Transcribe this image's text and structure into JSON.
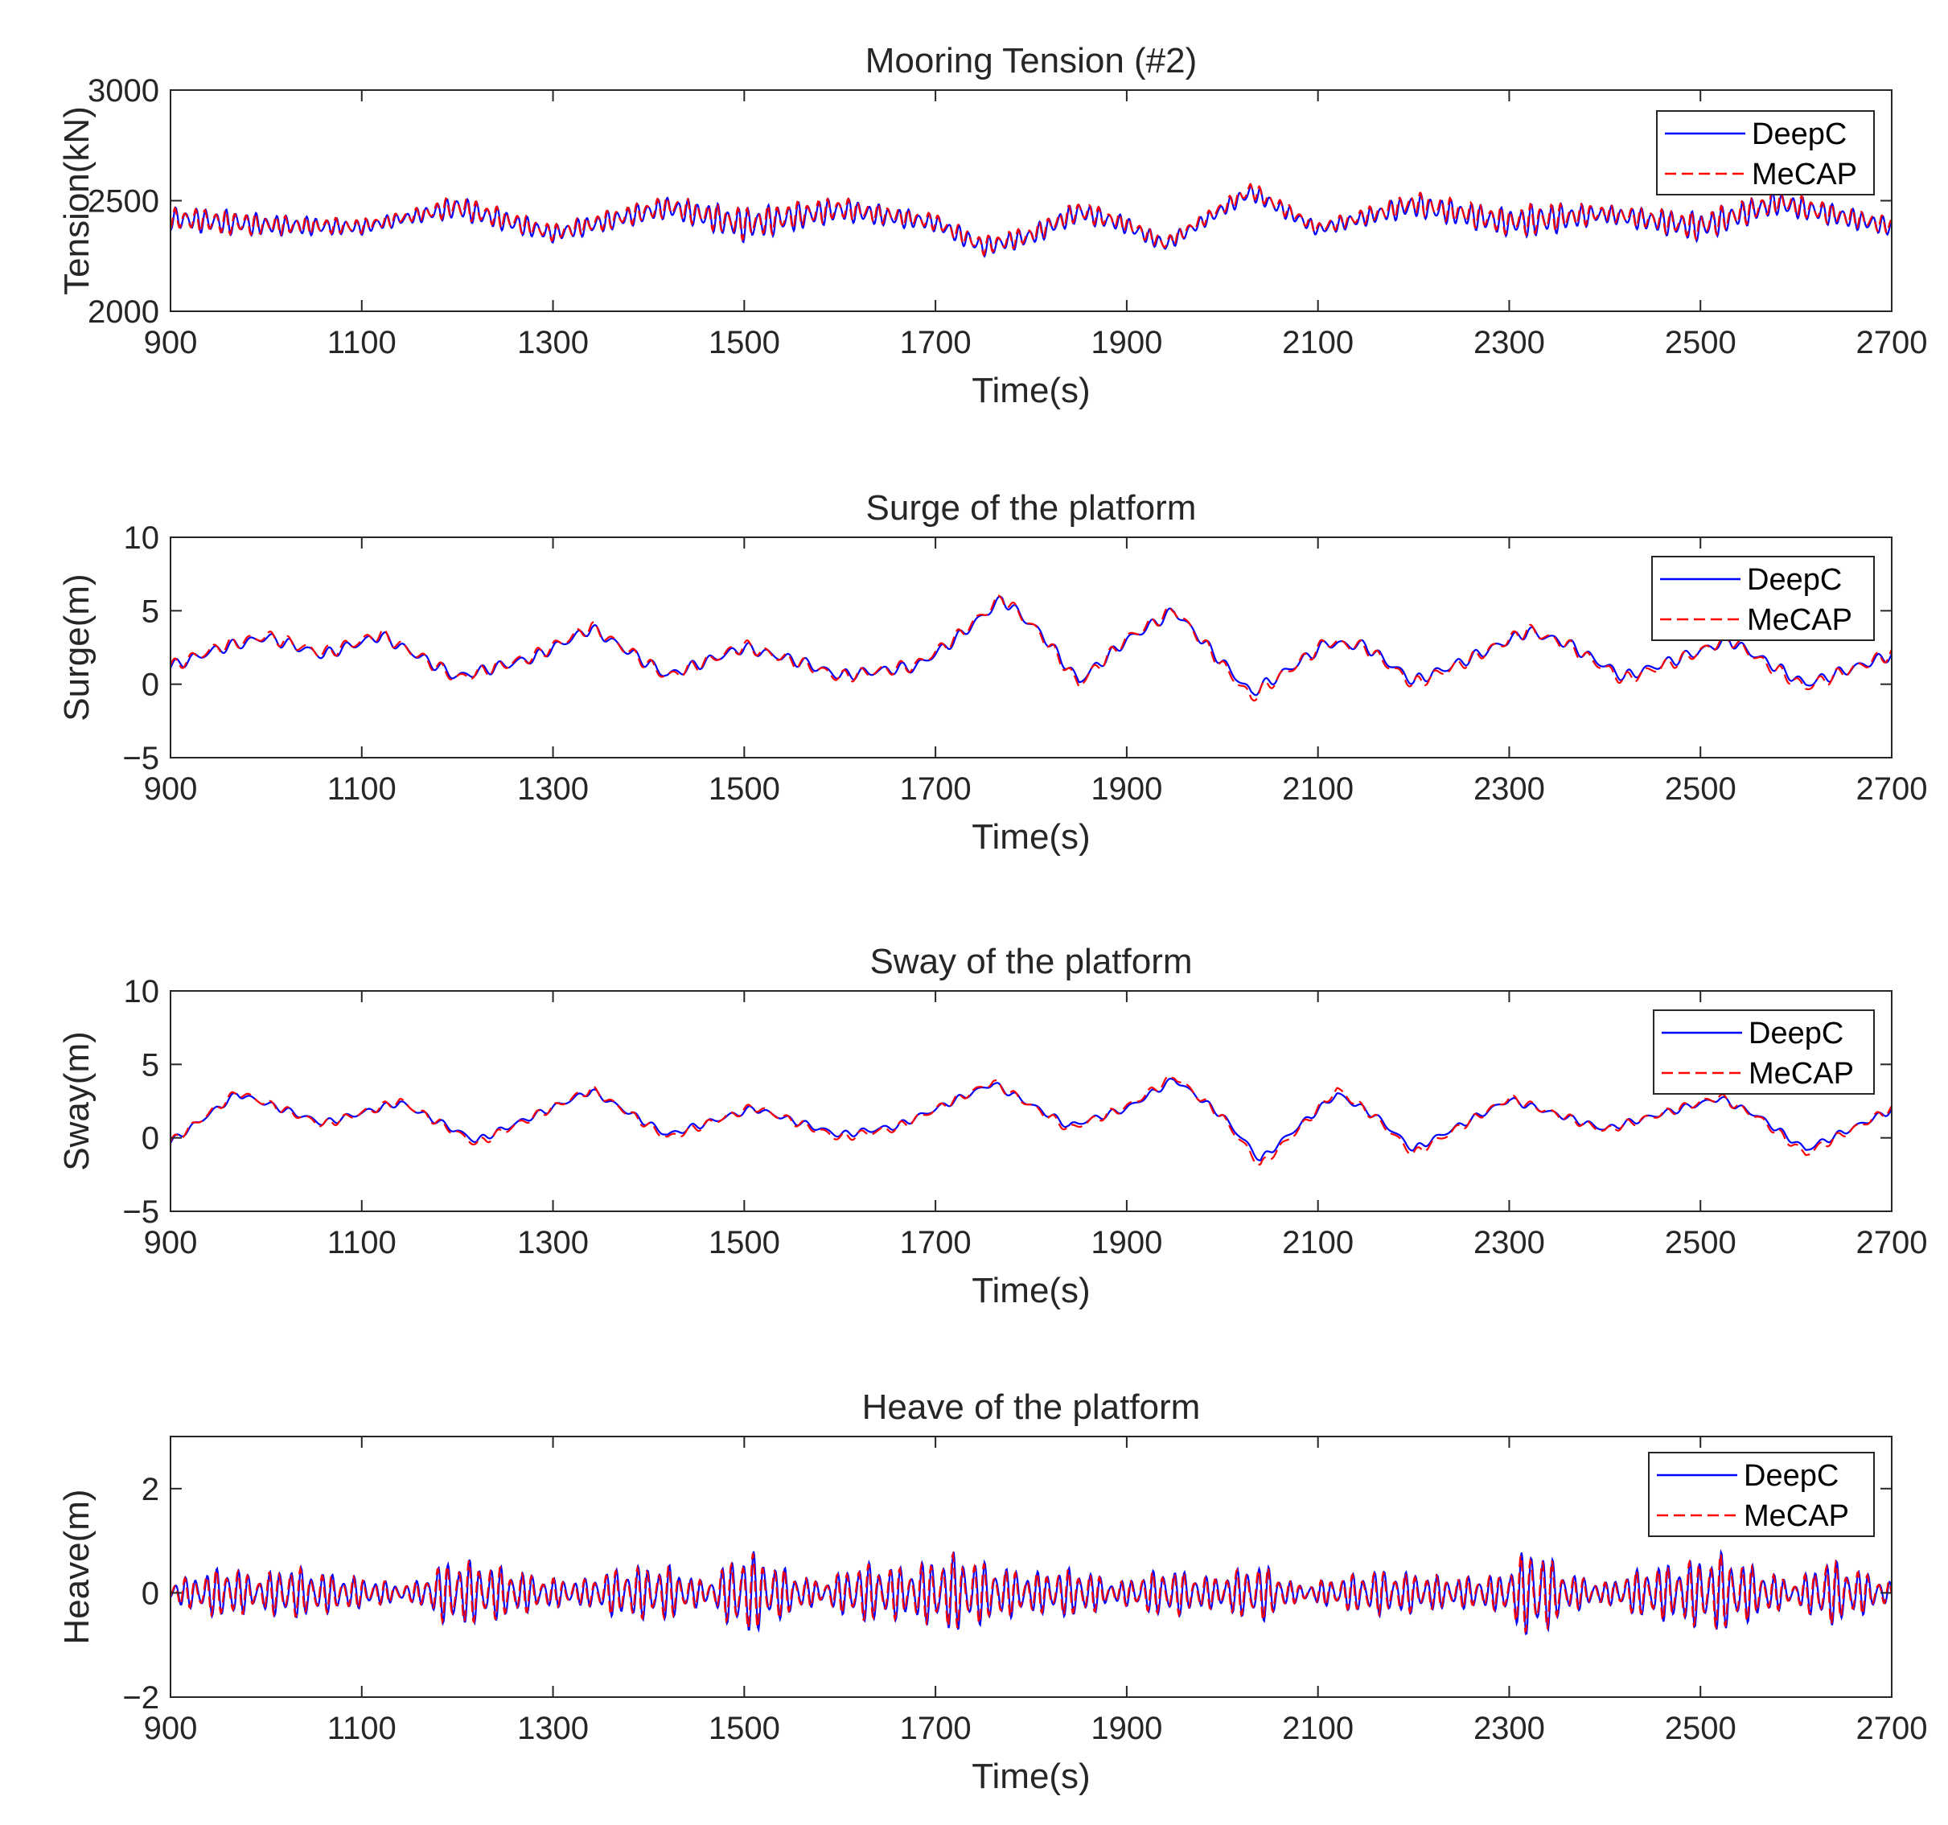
{
  "colors": {
    "deepc": "#0000ff",
    "mecap": "#ff0000",
    "axis": "#262626"
  },
  "chart_data": [
    {
      "type": "line",
      "title": "Mooring Tension (#2)",
      "xlabel": "Time(s)",
      "ylabel": "Tension(kN)",
      "xlim": [
        900,
        2700
      ],
      "ylim": [
        2000,
        3000
      ],
      "xticks": [
        "900",
        "1100",
        "1300",
        "1500",
        "1700",
        "1900",
        "2100",
        "2300",
        "2500",
        "2700"
      ],
      "yticks": [
        "2000",
        "2500",
        "3000"
      ],
      "legend": [
        "DeepC",
        "MeCAP"
      ],
      "legend_location": "top-right",
      "series": [
        {
          "name": "DeepC",
          "style": "solid",
          "base": {
            "x": [
              900,
              1000,
              1100,
              1200,
              1300,
              1350,
              1420,
              1500,
              1600,
              1700,
              1750,
              1800,
              1850,
              1900,
              1940,
              2030,
              2100,
              2200,
              2300,
              2400,
              2500,
              2580,
              2700
            ],
            "y": [
              2420,
              2390,
              2380,
              2470,
              2350,
              2400,
              2470,
              2390,
              2460,
              2400,
              2290,
              2340,
              2450,
              2390,
              2300,
              2540,
              2370,
              2480,
              2400,
              2440,
              2380,
              2490,
              2380
            ]
          },
          "envelope": {
            "x": [
              900,
              950,
              1000,
              1100,
              1150,
              1200,
              1250,
              1300,
              1340,
              1420,
              1500,
              1600,
              1700,
              1750,
              1800,
              1850,
              1900,
              1940,
              1980,
              2030,
              2100,
              2150,
              2200,
              2300,
              2330,
              2400,
              2500,
              2580,
              2650,
              2700
            ],
            "y": [
              50,
              60,
              50,
              35,
              30,
              55,
              50,
              40,
              45,
              50,
              80,
              55,
              40,
              45,
              45,
              50,
              40,
              35,
              30,
              40,
              30,
              40,
              55,
              65,
              80,
              40,
              70,
              55,
              50,
              40
            ]
          },
          "period_s": 10.5
        },
        {
          "name": "MeCAP",
          "style": "dashed",
          "base": {
            "x": [
              900,
              1000,
              1100,
              1200,
              1300,
              1350,
              1420,
              1500,
              1600,
              1700,
              1750,
              1800,
              1850,
              1900,
              1940,
              2030,
              2100,
              2200,
              2300,
              2400,
              2500,
              2580,
              2700
            ],
            "y": [
              2420,
              2390,
              2385,
              2475,
              2355,
              2405,
              2475,
              2395,
              2465,
              2405,
              2295,
              2345,
              2455,
              2395,
              2305,
              2550,
              2375,
              2490,
              2405,
              2445,
              2385,
              2495,
              2385
            ]
          },
          "envelope": {
            "x": [
              900,
              950,
              1000,
              1100,
              1150,
              1200,
              1250,
              1300,
              1340,
              1420,
              1500,
              1600,
              1700,
              1750,
              1800,
              1850,
              1900,
              1940,
              1980,
              2030,
              2100,
              2150,
              2200,
              2300,
              2330,
              2400,
              2500,
              2580,
              2650,
              2700
            ],
            "y": [
              48,
              58,
              48,
              33,
              28,
              53,
              48,
              38,
              43,
              48,
              75,
              52,
              38,
              43,
              43,
              48,
              38,
              33,
              28,
              38,
              28,
              38,
              52,
              62,
              76,
              38,
              66,
              52,
              48,
              38
            ]
          },
          "period_s": 10.5
        }
      ]
    },
    {
      "type": "line",
      "title": "Surge of the platform",
      "xlabel": "Time(s)",
      "ylabel": "Surge(m)",
      "xlim": [
        900,
        2700
      ],
      "ylim": [
        -5,
        10
      ],
      "xticks": [
        "900",
        "1100",
        "1300",
        "1500",
        "1700",
        "1900",
        "2100",
        "2300",
        "2500",
        "2700"
      ],
      "yticks": [
        "−5",
        "0",
        "5",
        "10"
      ],
      "legend": [
        "DeepC",
        "MeCAP"
      ],
      "legend_location": "top-right",
      "series": [
        {
          "name": "DeepC",
          "style": "solid",
          "base": {
            "x": [
              900,
              950,
              1000,
              1060,
              1120,
              1200,
              1280,
              1340,
              1420,
              1500,
              1560,
              1600,
              1680,
              1720,
              1770,
              1810,
              1850,
              1900,
              1950,
              2000,
              2030,
              2060,
              2110,
              2150,
              2200,
              2250,
              2320,
              2360,
              2420,
              2480,
              2530,
              2570,
              2610,
              2700
            ],
            "y": [
              1.2,
              2.4,
              3.2,
              2.0,
              3.3,
              0.5,
              1.8,
              3.8,
              0.6,
              2.5,
              1.5,
              0.6,
              1.2,
              3.0,
              5.8,
              3.5,
              0.2,
              3.0,
              5.0,
              1.5,
              -0.6,
              0.6,
              2.8,
              2.6,
              0.2,
              1.5,
              3.6,
              2.8,
              0.5,
              1.8,
              3.0,
              1.5,
              0.0,
              2.0
            ]
          },
          "envelope": {
            "x": [
              900,
              1500,
              2700
            ],
            "y": [
              0.4,
              0.4,
              0.4
            ]
          },
          "period_s": 20
        },
        {
          "name": "MeCAP",
          "style": "dashed",
          "base": {
            "x": [
              900,
              950,
              1000,
              1060,
              1120,
              1200,
              1280,
              1340,
              1420,
              1500,
              1560,
              1600,
              1680,
              1720,
              1770,
              1810,
              1850,
              1900,
              1950,
              2000,
              2030,
              2060,
              2110,
              2150,
              2200,
              2250,
              2320,
              2360,
              2420,
              2480,
              2530,
              2570,
              2610,
              2700
            ],
            "y": [
              1.2,
              2.5,
              3.3,
              2.1,
              3.4,
              0.4,
              1.9,
              3.9,
              0.5,
              2.6,
              1.4,
              0.5,
              1.3,
              3.1,
              5.9,
              3.4,
              0.0,
              3.1,
              5.1,
              1.3,
              -0.9,
              0.5,
              2.9,
              2.5,
              0.0,
              1.4,
              3.7,
              2.7,
              0.3,
              1.7,
              3.1,
              1.3,
              -0.2,
              2.1
            ]
          },
          "envelope": {
            "x": [
              900,
              1500,
              2700
            ],
            "y": [
              0.45,
              0.45,
              0.45
            ]
          },
          "period_s": 20
        }
      ]
    },
    {
      "type": "line",
      "title": "Sway of the platform",
      "xlabel": "Time(s)",
      "ylabel": "Sway(m)",
      "xlim": [
        900,
        2700
      ],
      "ylim": [
        -5,
        10
      ],
      "xticks": [
        "900",
        "1100",
        "1300",
        "1500",
        "1700",
        "1900",
        "2100",
        "2300",
        "2500",
        "2700"
      ],
      "yticks": [
        "−5",
        "0",
        "5",
        "10"
      ],
      "legend": [
        "DeepC",
        "MeCAP"
      ],
      "legend_location": "top-right",
      "series": [
        {
          "name": "DeepC",
          "style": "solid",
          "base": {
            "x": [
              900,
              970,
              1060,
              1140,
              1220,
              1340,
              1420,
              1510,
              1600,
              1660,
              1760,
              1840,
              1900,
              1950,
              2000,
              2040,
              2080,
              2120,
              2160,
              2200,
              2300,
              2400,
              2520,
              2560,
              2610,
              2700
            ],
            "y": [
              -0.3,
              3.0,
              1.0,
              2.4,
              -0.2,
              3.2,
              0.2,
              2.0,
              0.2,
              0.8,
              3.7,
              0.8,
              2.0,
              4.0,
              1.5,
              -1.5,
              0.8,
              3.0,
              1.5,
              -0.8,
              2.6,
              0.6,
              2.7,
              1.5,
              -0.8,
              1.9
            ]
          },
          "envelope": {
            "x": [
              900,
              1500,
              2700
            ],
            "y": [
              0.25,
              0.25,
              0.25
            ]
          },
          "period_s": 20
        },
        {
          "name": "MeCAP",
          "style": "dashed",
          "base": {
            "x": [
              900,
              970,
              1060,
              1140,
              1220,
              1340,
              1420,
              1510,
              1600,
              1660,
              1760,
              1840,
              1900,
              1950,
              2000,
              2040,
              2080,
              2120,
              2160,
              2200,
              2300,
              2400,
              2520,
              2560,
              2610,
              2700
            ],
            "y": [
              -0.3,
              3.1,
              0.9,
              2.5,
              -0.4,
              3.3,
              0.0,
              2.1,
              0.0,
              0.7,
              3.8,
              0.6,
              2.1,
              4.2,
              1.4,
              -1.9,
              0.6,
              3.3,
              1.4,
              -1.1,
              2.7,
              0.5,
              2.8,
              1.4,
              -1.1,
              2.0
            ]
          },
          "envelope": {
            "x": [
              900,
              1500,
              2700
            ],
            "y": [
              0.3,
              0.3,
              0.3
            ]
          },
          "period_s": 20
        }
      ]
    },
    {
      "type": "line",
      "title": "Heave of the platform",
      "xlabel": "Time(s)",
      "ylabel": "Heave(m)",
      "xlim": [
        900,
        2700
      ],
      "ylim": [
        -2,
        3
      ],
      "xticks": [
        "900",
        "1100",
        "1300",
        "1500",
        "1700",
        "1900",
        "2100",
        "2300",
        "2500",
        "2700"
      ],
      "yticks": [
        "−2",
        "0",
        "2"
      ],
      "legend": [
        "DeepC",
        "MeCAP"
      ],
      "legend_location": "top-right",
      "series": [
        {
          "name": "DeepC",
          "style": "solid",
          "base": {
            "x": [
              900,
              2700
            ],
            "y": [
              0,
              0
            ]
          },
          "envelope": {
            "x": [
              900,
              960,
              990,
              1020,
              1060,
              1100,
              1150,
              1195,
              1240,
              1290,
              1330,
              1370,
              1420,
              1460,
              1500,
              1540,
              1580,
              1620,
              1670,
              1720,
              1760,
              1800,
              1850,
              1890,
              1940,
              1990,
              2040,
              2080,
              2120,
              2160,
              2200,
              2240,
              2290,
              2325,
              2360,
              2400,
              2440,
              2480,
              2520,
              2560,
              2600,
              2630,
              2660,
              2700
            ],
            "y": [
              0.2,
              0.55,
              0.3,
              0.55,
              0.4,
              0.3,
              0.15,
              0.7,
              0.55,
              0.3,
              0.25,
              0.5,
              0.55,
              0.2,
              0.9,
              0.5,
              0.2,
              0.6,
              0.5,
              0.8,
              0.55,
              0.4,
              0.5,
              0.2,
              0.5,
              0.3,
              0.6,
              0.15,
              0.3,
              0.45,
              0.4,
              0.3,
              0.35,
              1.0,
              0.4,
              0.2,
              0.5,
              0.6,
              0.8,
              0.5,
              0.2,
              0.7,
              0.5,
              0.2
            ]
          },
          "period_s": 11
        },
        {
          "name": "MeCAP",
          "style": "dashed",
          "base": {
            "x": [
              900,
              2700
            ],
            "y": [
              0,
              0
            ]
          },
          "envelope": {
            "x": [
              900,
              960,
              990,
              1020,
              1060,
              1100,
              1150,
              1195,
              1240,
              1290,
              1330,
              1370,
              1420,
              1460,
              1500,
              1540,
              1580,
              1620,
              1670,
              1720,
              1760,
              1800,
              1850,
              1890,
              1940,
              1990,
              2040,
              2080,
              2120,
              2160,
              2200,
              2240,
              2290,
              2325,
              2360,
              2400,
              2440,
              2480,
              2520,
              2560,
              2600,
              2630,
              2660,
              2700
            ],
            "y": [
              0.2,
              0.53,
              0.3,
              0.53,
              0.38,
              0.3,
              0.15,
              0.68,
              0.53,
              0.3,
              0.24,
              0.48,
              0.53,
              0.2,
              0.85,
              0.48,
              0.2,
              0.58,
              0.48,
              0.76,
              0.53,
              0.38,
              0.48,
              0.2,
              0.48,
              0.3,
              0.58,
              0.15,
              0.3,
              0.43,
              0.38,
              0.3,
              0.34,
              0.95,
              0.38,
              0.2,
              0.48,
              0.58,
              0.76,
              0.48,
              0.2,
              0.68,
              0.48,
              0.2
            ]
          },
          "period_s": 11
        }
      ]
    }
  ]
}
